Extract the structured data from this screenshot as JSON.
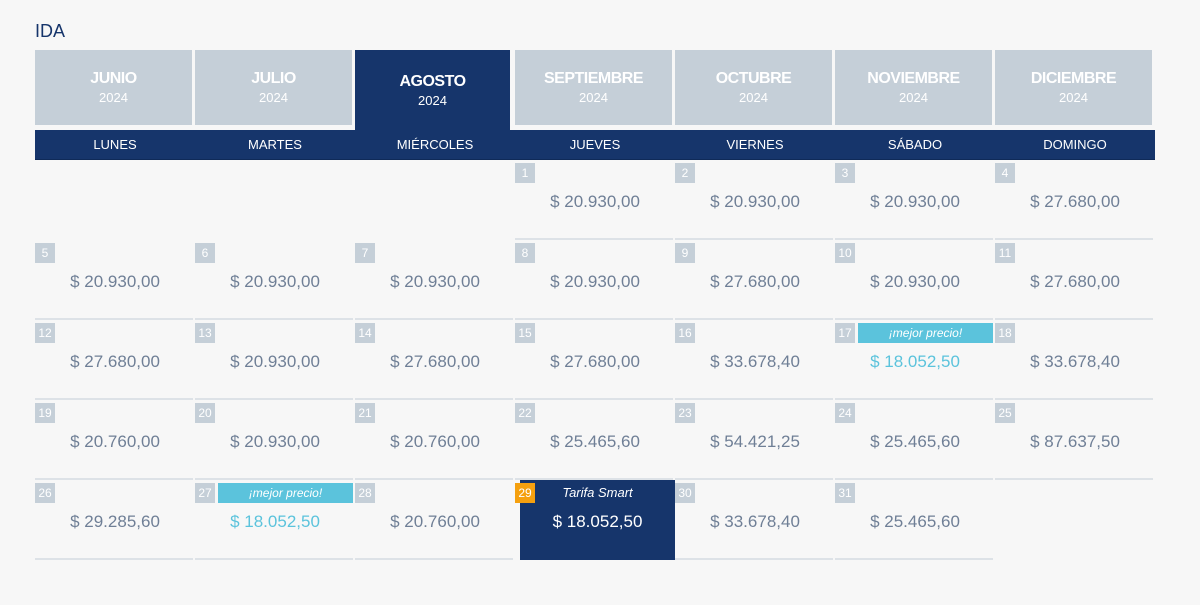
{
  "title": "IDA",
  "months": [
    {
      "name": "JUNIO",
      "year": "2024"
    },
    {
      "name": "JULIO",
      "year": "2024"
    },
    {
      "name": "AGOSTO",
      "year": "2024",
      "active": true
    },
    {
      "name": "SEPTIEMBRE",
      "year": "2024"
    },
    {
      "name": "OCTUBRE",
      "year": "2024"
    },
    {
      "name": "NOVIEMBRE",
      "year": "2024"
    },
    {
      "name": "DICIEMBRE",
      "year": "2024"
    }
  ],
  "weekdays": [
    "LUNES",
    "MARTES",
    "MIÉRCOLES",
    "JUEVES",
    "VIERNES",
    "SÁBADO",
    "DOMINGO"
  ],
  "best_label": "¡mejor precio!",
  "smart_label": "Tarifa Smart",
  "weeks": [
    [
      null,
      null,
      null,
      {
        "day": "1",
        "price": "$ 20.930,00"
      },
      {
        "day": "2",
        "price": "$ 20.930,00"
      },
      {
        "day": "3",
        "price": "$ 20.930,00"
      },
      {
        "day": "4",
        "price": "$ 27.680,00"
      }
    ],
    [
      {
        "day": "5",
        "price": "$ 20.930,00"
      },
      {
        "day": "6",
        "price": "$ 20.930,00"
      },
      {
        "day": "7",
        "price": "$ 20.930,00"
      },
      {
        "day": "8",
        "price": "$ 20.930,00"
      },
      {
        "day": "9",
        "price": "$ 27.680,00"
      },
      {
        "day": "10",
        "price": "$ 20.930,00"
      },
      {
        "day": "11",
        "price": "$ 27.680,00"
      }
    ],
    [
      {
        "day": "12",
        "price": "$ 27.680,00"
      },
      {
        "day": "13",
        "price": "$ 20.930,00"
      },
      {
        "day": "14",
        "price": "$ 27.680,00"
      },
      {
        "day": "15",
        "price": "$ 27.680,00"
      },
      {
        "day": "16",
        "price": "$ 33.678,40"
      },
      {
        "day": "17",
        "price": "$ 18.052,50",
        "best": true
      },
      {
        "day": "18",
        "price": "$ 33.678,40"
      }
    ],
    [
      {
        "day": "19",
        "price": "$ 20.760,00"
      },
      {
        "day": "20",
        "price": "$ 20.930,00"
      },
      {
        "day": "21",
        "price": "$ 20.760,00"
      },
      {
        "day": "22",
        "price": "$ 25.465,60"
      },
      {
        "day": "23",
        "price": "$ 54.421,25"
      },
      {
        "day": "24",
        "price": "$ 25.465,60"
      },
      {
        "day": "25",
        "price": "$ 87.637,50"
      }
    ],
    [
      {
        "day": "26",
        "price": "$ 29.285,60"
      },
      {
        "day": "27",
        "price": "$ 18.052,50",
        "best": true
      },
      {
        "day": "28",
        "price": "$ 20.760,00"
      },
      {
        "day": "29",
        "price": "$ 18.052,50",
        "selected": true
      },
      {
        "day": "30",
        "price": "$ 33.678,40"
      },
      {
        "day": "31",
        "price": "$ 25.465,60"
      },
      null
    ]
  ]
}
